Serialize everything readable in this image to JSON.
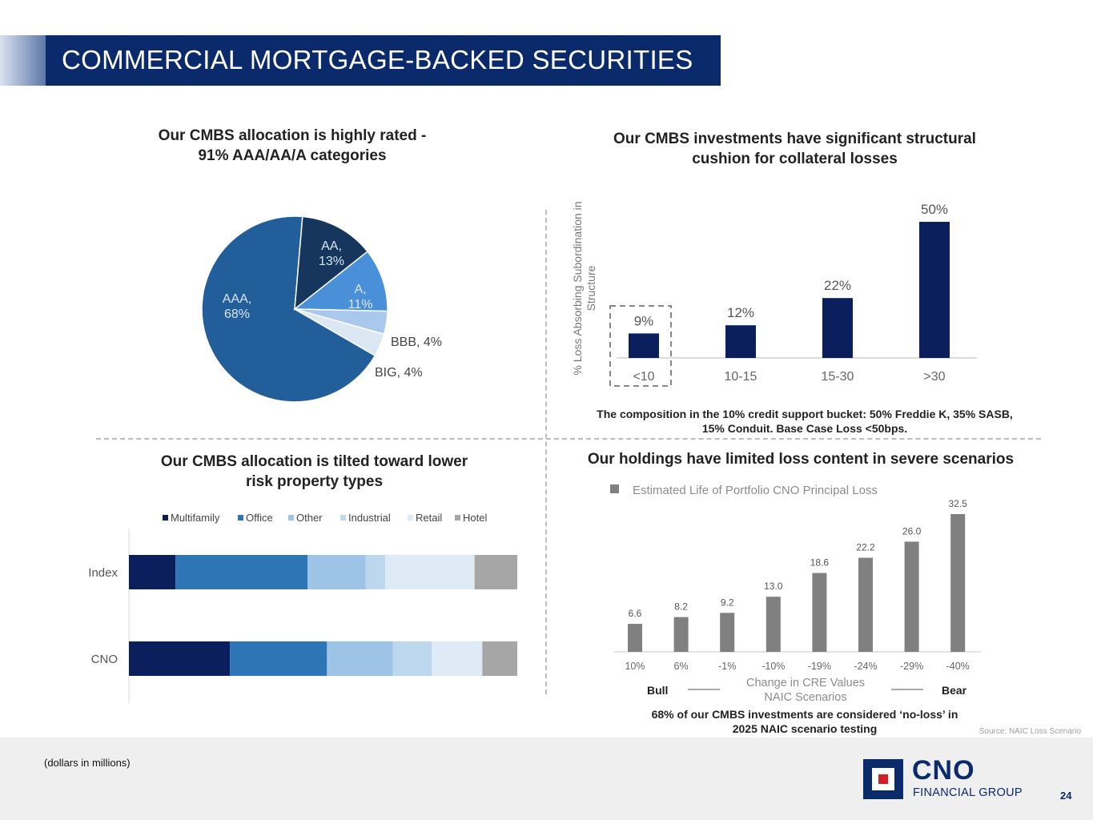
{
  "header": {
    "title": "COMMERCIAL MORTGAGE-BACKED SECURITIES"
  },
  "panels": {
    "top_left_title_1": "Our CMBS allocation is highly rated -",
    "top_left_title_2": "91% AAA/AA/A categories",
    "top_right_title_1": "Our CMBS investments have significant structural",
    "top_right_title_2": "cushion for collateral losses",
    "top_right_note_1": "The composition in the 10% credit support bucket: 50% Freddie K, 35% SASB,",
    "top_right_note_2": "15% Conduit.  Base Case Loss <50bps.",
    "bottom_left_title_1": "Our CMBS allocation is tilted toward lower",
    "bottom_left_title_2": "risk property types",
    "bottom_right_title": "Our holdings have limited loss content in severe scenarios",
    "bottom_right_note_1": "68% of our CMBS investments are considered ‘no-loss’ in",
    "bottom_right_note_2": "2025 NAIC scenario testing"
  },
  "chart_data": [
    {
      "id": "rating_pie",
      "type": "pie",
      "slices": [
        {
          "label": "AAA, 68%",
          "label_lines": [
            "AAA,",
            "68%"
          ],
          "value": 68,
          "color": "#215e9a"
        },
        {
          "label": "AA, 13%",
          "label_lines": [
            "AA,",
            "13%"
          ],
          "value": 13,
          "color": "#17365d"
        },
        {
          "label": "A, 11%",
          "label_lines": [
            "A,",
            "11%"
          ],
          "value": 11,
          "color": "#4a90d9"
        },
        {
          "label": "BBB, 4%",
          "label_lines": [
            "BBB, 4%"
          ],
          "value": 4,
          "color": "#a9c8ec"
        },
        {
          "label": "BIG, 4%",
          "label_lines": [
            "BIG, 4%"
          ],
          "value": 4,
          "color": "#dce7f4"
        }
      ]
    },
    {
      "id": "subordination_bar",
      "type": "bar",
      "categories": [
        "<10",
        "10-15",
        "15-30",
        ">30"
      ],
      "values": [
        9,
        12,
        22,
        50
      ],
      "value_labels": [
        "9%",
        "12%",
        "22%",
        "50%"
      ],
      "ylabel": "% Loss Absorbing Subordination in Structure",
      "ylabel_lines": [
        "% Loss Absorbing Subordination in",
        "Structure"
      ],
      "highlighted_category": "<10",
      "color": "#0b1f5c"
    },
    {
      "id": "property_type_bar",
      "type": "bar",
      "stacked": true,
      "orientation": "horizontal",
      "percent_stacked": true,
      "categories": [
        "Index",
        "CNO"
      ],
      "series": [
        {
          "name": "Multifamily",
          "values": [
            12,
            26
          ],
          "color": "#0b1f5c"
        },
        {
          "name": "Office",
          "values": [
            34,
            25
          ],
          "color": "#2e75b6"
        },
        {
          "name": "Other",
          "values": [
            15,
            17
          ],
          "color": "#9dc3e6"
        },
        {
          "name": "Industrial",
          "values": [
            5,
            10
          ],
          "color": "#bdd7ee"
        },
        {
          "name": "Retail",
          "values": [
            23,
            13
          ],
          "color": "#deebf7"
        },
        {
          "name": "Hotel",
          "values": [
            11,
            9
          ],
          "color": "#a6a6a6"
        }
      ],
      "legend": "top"
    },
    {
      "id": "naic_loss_bar",
      "type": "bar",
      "categories": [
        "10%",
        "6%",
        "-1%",
        "-10%",
        "-19%",
        "-24%",
        "-29%",
        "-40%"
      ],
      "series": [
        {
          "name": "Estimated Life of Portfolio CNO Principal Loss",
          "values": [
            6.6,
            8.2,
            9.2,
            13.0,
            18.6,
            22.2,
            26.0,
            32.5
          ],
          "color": "#808080"
        }
      ],
      "value_labels": [
        "6.6",
        "8.2",
        "9.2",
        "13.0",
        "18.6",
        "22.2",
        "26.0",
        "32.5"
      ],
      "xlabel": "Change in CRE Values NAIC Scenarios",
      "xlabel_lines": [
        "Change in CRE Values",
        "NAIC Scenarios"
      ],
      "left_end_label": "Bull",
      "right_end_label": "Bear",
      "legend": "top-left"
    }
  ],
  "footer": {
    "note": "(dollars in millions)",
    "source": "Source: NAIC Loss Scenario",
    "logo_text": "CNO",
    "logo_subtext": "FINANCIAL GROUP",
    "page_number": "24"
  }
}
